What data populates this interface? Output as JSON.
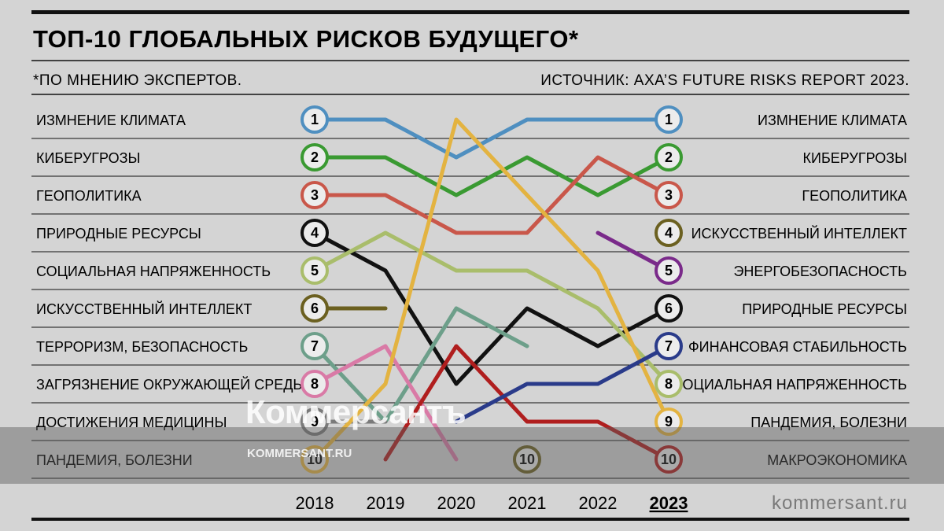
{
  "title": "ТОП-10 ГЛОБАЛЬНЫХ РИСКОВ БУДУЩЕГО*",
  "footnote": "*ПО МНЕНИЮ ЭКСПЕРТОВ.",
  "source": "ИСТОЧНИК: AXA’S FUTURE RISKS REPORT 2023.",
  "site_label": "kommersant.ru",
  "watermark": {
    "logo": "Коммерсантъ",
    "url": "KOMMERSANT.RU"
  },
  "chart_data": {
    "type": "line",
    "x": [
      "2018",
      "2019",
      "2020",
      "2021",
      "2022",
      "2023"
    ],
    "highlight_x": "2023",
    "y_meaning": "rank",
    "y_range": [
      1,
      10
    ],
    "y_inverted": true,
    "left_labels": [
      "ИЗМНЕНИЕ КЛИМАТА",
      "КИБЕРУГРОЗЫ",
      "ГЕОПОЛИТИКА",
      "ПРИРОДНЫЕ РЕСУРСЫ",
      "СОЦИАЛЬНАЯ НАПРЯЖЕННОСТЬ",
      "ИСКУССТВЕННЫЙ ИНТЕЛЛЕКТ",
      "ТЕРРОРИЗМ, БЕЗОПАСНОСТЬ",
      "ЗАГРЯЗНЕНИЕ ОКРУЖАЮЩЕЙ СРЕДЫ",
      "ДОСТИЖЕНИЯ МЕДИЦИНЫ",
      "ПАНДЕМИЯ, БОЛЕЗНИ"
    ],
    "right_labels": [
      "ИЗМНЕНИЕ КЛИМАТА",
      "КИБЕРУГРОЗЫ",
      "ГЕОПОЛИТИКА",
      "ИСКУССТВЕННЫЙ ИНТЕЛЛЕКТ",
      "ЭНЕРГОБЕЗОПАСНОСТЬ",
      "ПРИРОДНЫЕ РЕСУРСЫ",
      "ФИНАНСОВАЯ СТАБИЛЬНОСТЬ",
      "СОЦИАЛЬНАЯ НАПРЯЖЕННОСТЬ",
      "ПАНДЕМИЯ, БОЛЕЗНИ",
      "МАКРОЭКОНОМИКА"
    ],
    "series": [
      {
        "color": "#4f8fc0",
        "points": [
          [
            0,
            1
          ],
          [
            1,
            1
          ],
          [
            2,
            2
          ],
          [
            3,
            1
          ],
          [
            4,
            1
          ],
          [
            5,
            1
          ]
        ],
        "circles": [
          0,
          5
        ]
      },
      {
        "color": "#3a9a32",
        "points": [
          [
            0,
            2
          ],
          [
            1,
            2
          ],
          [
            2,
            3
          ],
          [
            3,
            2
          ],
          [
            4,
            3
          ],
          [
            5,
            2
          ]
        ],
        "circles": [
          0,
          5
        ]
      },
      {
        "color": "#c9574a",
        "points": [
          [
            0,
            3
          ],
          [
            1,
            3
          ],
          [
            2,
            4
          ],
          [
            3,
            4
          ],
          [
            4,
            2
          ],
          [
            5,
            3
          ]
        ],
        "circles": [
          0,
          5
        ]
      },
      {
        "color": "#111111",
        "points": [
          [
            0,
            4
          ],
          [
            1,
            5
          ],
          [
            2,
            8
          ],
          [
            3,
            6
          ],
          [
            4,
            7
          ],
          [
            5,
            6
          ]
        ],
        "circles": [
          0,
          5
        ]
      },
      {
        "color": "#a9bd6b",
        "points": [
          [
            0,
            5
          ],
          [
            1,
            4
          ],
          [
            2,
            5
          ],
          [
            3,
            5
          ],
          [
            4,
            6
          ],
          [
            5,
            8
          ]
        ],
        "circles": [
          0,
          5
        ]
      },
      {
        "color": "#6b6020",
        "points": [
          [
            0,
            6
          ],
          [
            1,
            6
          ]
        ],
        "circles": [
          0
        ]
      },
      {
        "color": "#6d9f8a",
        "points": [
          [
            0,
            7
          ],
          [
            1,
            9
          ],
          [
            2,
            6
          ],
          [
            3,
            7
          ]
        ],
        "circles": [
          0
        ]
      },
      {
        "color": "#d97aa6",
        "points": [
          [
            0,
            8
          ],
          [
            1,
            7
          ],
          [
            2,
            10
          ]
        ],
        "circles": [
          0
        ]
      },
      {
        "color": "#7a7a7a",
        "points": [
          [
            0,
            9
          ],
          [
            1,
            9
          ]
        ],
        "circles": [
          0
        ]
      },
      {
        "color": "#e3b341",
        "points": [
          [
            0,
            10
          ],
          [
            1,
            8
          ],
          [
            2,
            1
          ],
          [
            3,
            3
          ],
          [
            4,
            5
          ],
          [
            5,
            9
          ]
        ],
        "circles": [
          0,
          5
        ]
      },
      {
        "color": "#b01e1e",
        "points": [
          [
            1,
            10
          ],
          [
            2,
            7
          ],
          [
            3,
            9
          ],
          [
            4,
            9
          ],
          [
            5,
            10
          ]
        ],
        "circles": [
          5
        ]
      },
      {
        "color": "#2a3b8a",
        "points": [
          [
            2,
            9
          ],
          [
            3,
            8
          ],
          [
            4,
            8
          ],
          [
            5,
            7
          ]
        ],
        "circles": [
          5
        ]
      },
      {
        "color": "#7a2a8a",
        "points": [
          [
            4,
            4
          ],
          [
            5,
            5
          ]
        ],
        "circles": [
          5
        ]
      },
      {
        "color": "#6b6020",
        "points": [
          [
            5,
            4
          ]
        ],
        "circles": [
          5
        ]
      },
      {
        "color": "#6b6020",
        "points": [
          [
            3,
            10
          ]
        ],
        "circles": [
          3
        ]
      }
    ]
  }
}
